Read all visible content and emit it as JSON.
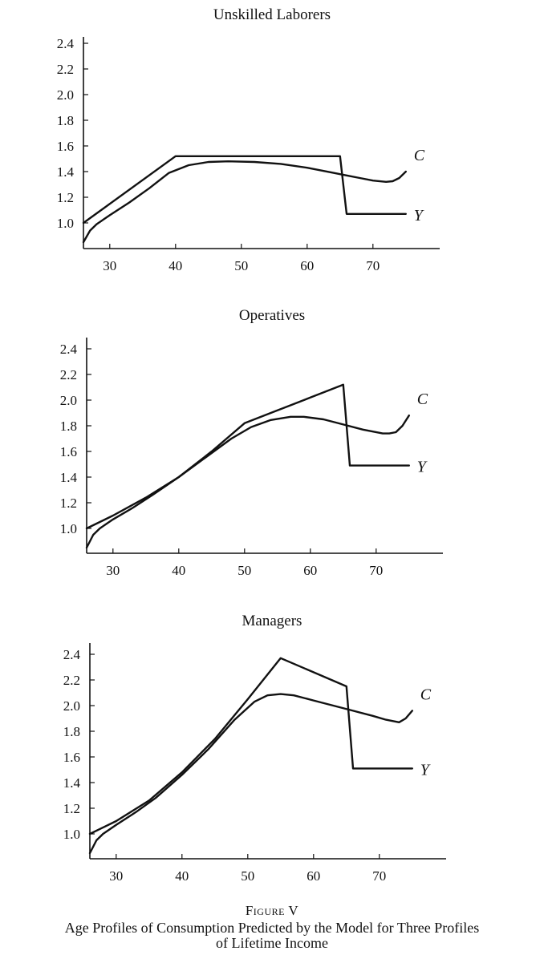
{
  "figure": {
    "label": "Figure V",
    "title_line1": "Age Profiles of Consumption Predicted by the Model for Three Profiles",
    "title_line2": "of Lifetime Income"
  },
  "chart_data": [
    {
      "type": "line",
      "title": "Unskilled Laborers",
      "xlabel": "",
      "ylabel": "",
      "xlim": [
        26,
        79
      ],
      "ylim": [
        0.8,
        2.5
      ],
      "xticks": [
        "30",
        "40",
        "50",
        "60",
        "70"
      ],
      "yticks": [
        "1.0",
        "1.2",
        "1.4",
        "1.6",
        "1.8",
        "2.0",
        "2.2",
        "2.4"
      ],
      "grid": false,
      "series": [
        {
          "name": "C",
          "x": [
            26,
            27,
            28,
            30,
            33,
            36,
            39,
            42,
            45,
            48,
            52,
            56,
            60,
            64,
            66,
            68,
            70,
            72,
            73,
            74,
            75
          ],
          "y": [
            0.85,
            0.94,
            0.99,
            1.06,
            1.16,
            1.27,
            1.39,
            1.45,
            1.475,
            1.48,
            1.475,
            1.46,
            1.43,
            1.39,
            1.37,
            1.35,
            1.33,
            1.32,
            1.325,
            1.35,
            1.4
          ]
        },
        {
          "name": "Y",
          "x": [
            26,
            40,
            65,
            66,
            75
          ],
          "y": [
            1.0,
            1.52,
            1.52,
            1.07,
            1.07
          ]
        }
      ]
    },
    {
      "type": "line",
      "title": "Operatives",
      "xlabel": "",
      "ylabel": "",
      "xlim": [
        26,
        79
      ],
      "ylim": [
        0.8,
        2.5
      ],
      "xticks": [
        "30",
        "40",
        "50",
        "60",
        "70"
      ],
      "yticks": [
        "1.0",
        "1.2",
        "1.4",
        "1.6",
        "1.8",
        "2.0",
        "2.2",
        "2.4"
      ],
      "grid": false,
      "series": [
        {
          "name": "C",
          "x": [
            26,
            27,
            28,
            30,
            33,
            36,
            40,
            44,
            48,
            51,
            54,
            57,
            59,
            62,
            65,
            68,
            71,
            72,
            73,
            74,
            75
          ],
          "y": [
            0.85,
            0.95,
            1.0,
            1.07,
            1.16,
            1.26,
            1.4,
            1.55,
            1.7,
            1.79,
            1.845,
            1.87,
            1.87,
            1.85,
            1.81,
            1.77,
            1.74,
            1.74,
            1.75,
            1.8,
            1.88
          ]
        },
        {
          "name": "Y",
          "x": [
            26,
            30,
            35,
            40,
            45,
            50,
            55,
            60,
            65,
            66,
            75
          ],
          "y": [
            1.0,
            1.1,
            1.24,
            1.4,
            1.6,
            1.82,
            1.92,
            2.02,
            2.12,
            1.49,
            1.49
          ]
        }
      ]
    },
    {
      "type": "line",
      "title": "Managers",
      "xlabel": "",
      "ylabel": "",
      "xlim": [
        26,
        79
      ],
      "ylim": [
        0.8,
        2.5
      ],
      "xticks": [
        "30",
        "40",
        "50",
        "60",
        "70"
      ],
      "yticks": [
        "1.0",
        "1.2",
        "1.4",
        "1.6",
        "1.8",
        "2.0",
        "2.2",
        "2.4"
      ],
      "grid": false,
      "series": [
        {
          "name": "C",
          "x": [
            26,
            27,
            28,
            30,
            33,
            36,
            40,
            44,
            48,
            51,
            53,
            55,
            57,
            60,
            63,
            66,
            69,
            71,
            73,
            74,
            75
          ],
          "y": [
            0.85,
            0.95,
            1.0,
            1.07,
            1.17,
            1.28,
            1.46,
            1.66,
            1.89,
            2.03,
            2.08,
            2.09,
            2.08,
            2.04,
            2.0,
            1.96,
            1.92,
            1.89,
            1.87,
            1.9,
            1.96
          ]
        },
        {
          "name": "Y",
          "x": [
            26,
            30,
            35,
            40,
            45,
            50,
            55,
            65,
            66,
            75
          ],
          "y": [
            1.0,
            1.1,
            1.26,
            1.48,
            1.74,
            2.05,
            2.37,
            2.15,
            1.51,
            1.51
          ]
        }
      ]
    }
  ]
}
